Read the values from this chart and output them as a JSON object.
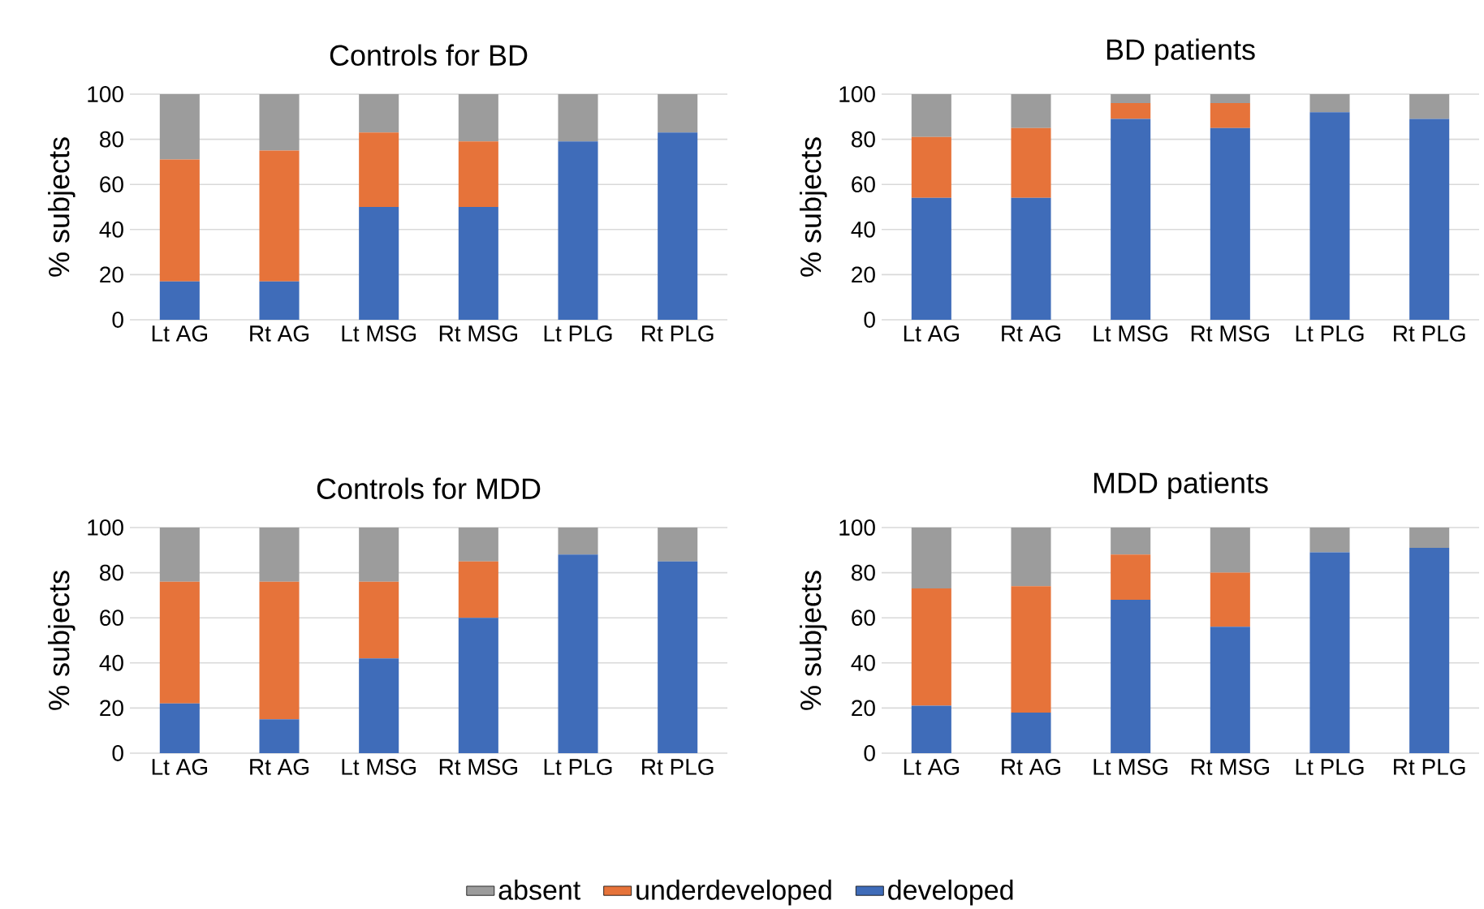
{
  "chart_data": [
    {
      "type": "bar",
      "stacked": true,
      "title": "Controls for BD",
      "ylabel": "% subjects",
      "categories": [
        "Lt AG",
        "Rt AG",
        "Lt MSG",
        "Rt MSG",
        "Lt PLG",
        "Rt PLG"
      ],
      "ylim": [
        0,
        100
      ],
      "yticks": [
        0,
        20,
        40,
        60,
        80,
        100
      ],
      "grid": "y",
      "series": [
        {
          "color": "#3f6cb9",
          "values": [
            17,
            17,
            50,
            50,
            79,
            83
          ]
        },
        {
          "color": "#e6733a",
          "values": [
            54,
            58,
            33,
            29,
            0,
            0
          ]
        },
        {
          "color": "#9c9c9c",
          "values": [
            29,
            25,
            17,
            21,
            21,
            17
          ]
        }
      ]
    },
    {
      "type": "bar",
      "stacked": true,
      "title": "BD patients",
      "ylabel": "% subjects",
      "categories": [
        "Lt AG",
        "Rt AG",
        "Lt MSG",
        "Rt MSG",
        "Lt PLG",
        "Rt PLG"
      ],
      "ylim": [
        0,
        100
      ],
      "yticks": [
        0,
        20,
        40,
        60,
        80,
        100
      ],
      "grid": "y",
      "series": [
        {
          "color": "#3f6cb9",
          "values": [
            54,
            54,
            89,
            85,
            92,
            89
          ]
        },
        {
          "color": "#e6733a",
          "values": [
            27,
            31,
            7,
            11,
            0,
            0
          ]
        },
        {
          "color": "#9c9c9c",
          "values": [
            19,
            15,
            4,
            4,
            8,
            11
          ]
        }
      ]
    },
    {
      "type": "bar",
      "stacked": true,
      "title": "Controls for MDD",
      "ylabel": "% subjects",
      "categories": [
        "Lt AG",
        "Rt AG",
        "Lt MSG",
        "Rt MSG",
        "Lt PLG",
        "Rt PLG"
      ],
      "ylim": [
        0,
        100
      ],
      "yticks": [
        0,
        20,
        40,
        60,
        80,
        100
      ],
      "grid": "y",
      "series": [
        {
          "color": "#3f6cb9",
          "values": [
            22,
            15,
            42,
            60,
            88,
            85
          ]
        },
        {
          "color": "#e6733a",
          "values": [
            54,
            61,
            34,
            25,
            0,
            0
          ]
        },
        {
          "color": "#9c9c9c",
          "values": [
            24,
            24,
            24,
            15,
            12,
            15
          ]
        }
      ]
    },
    {
      "type": "bar",
      "stacked": true,
      "title": "MDD patients",
      "ylabel": "% subjects",
      "categories": [
        "Lt AG",
        "Rt AG",
        "Lt MSG",
        "Rt MSG",
        "Lt PLG",
        "Rt PLG"
      ],
      "ylim": [
        0,
        100
      ],
      "yticks": [
        0,
        20,
        40,
        60,
        80,
        100
      ],
      "grid": "y",
      "legend": "bottom",
      "series": [
        {
          "name": "developed",
          "color": "#3f6cb9",
          "values": [
            21,
            18,
            68,
            56,
            89,
            91
          ]
        },
        {
          "name": "underdeveloped",
          "color": "#e6733a",
          "values": [
            52,
            56,
            20,
            24,
            0,
            0
          ]
        },
        {
          "name": "absent",
          "color": "#9c9c9c",
          "values": [
            27,
            26,
            12,
            20,
            11,
            9
          ]
        }
      ]
    }
  ]
}
